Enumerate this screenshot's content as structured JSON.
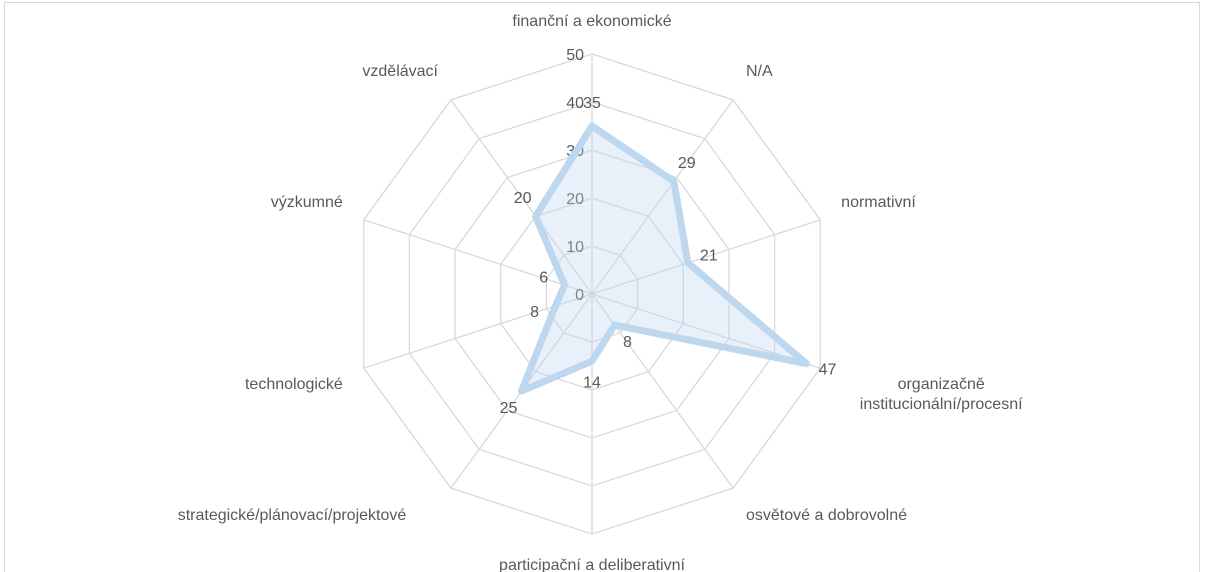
{
  "chart_data": {
    "type": "radar",
    "categories": [
      "finanční a ekonomické",
      "N/A",
      "normativní",
      "organizačně institucionální/procesní",
      "osvětové a dobrovolné",
      "participační a deliberativní",
      "strategické/plánovací/projektové",
      "technologické",
      "výzkumné",
      "vzdělávací"
    ],
    "values": [
      35,
      29,
      21,
      47,
      8,
      14,
      25,
      8,
      6,
      20
    ],
    "color": "#bdd7ee",
    "ylim": [
      0,
      50
    ],
    "yticks": [
      0,
      10,
      20,
      30,
      40,
      50
    ],
    "grid": true
  }
}
